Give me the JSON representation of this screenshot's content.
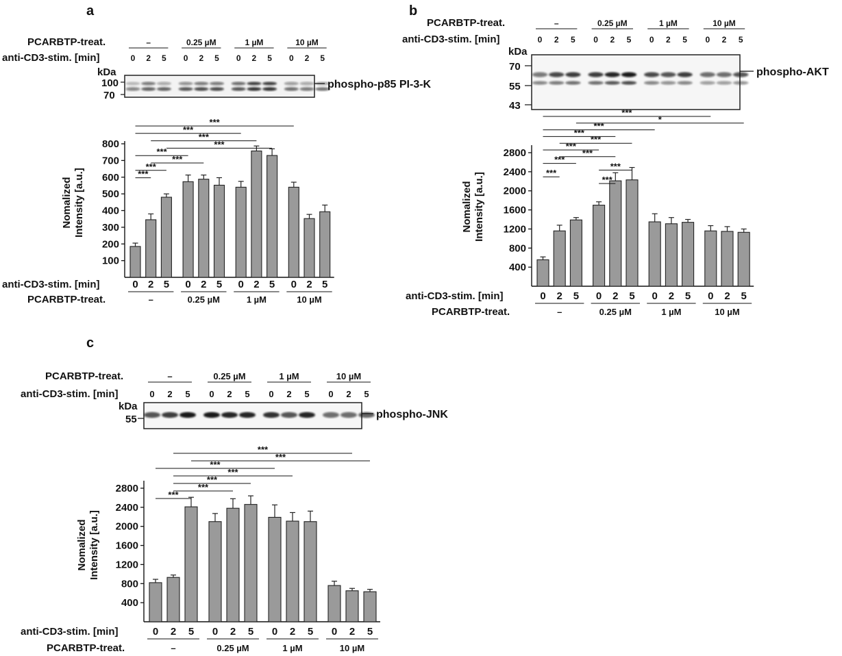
{
  "common": {
    "treat_label": "PCARBTP-treat.",
    "stim_label": "anti-CD3-stim. [min]",
    "groups": [
      "–",
      "0.25 µM",
      "1 µM",
      "10 µM"
    ],
    "lane_labels": [
      "0",
      "2",
      "5",
      "0",
      "2",
      "5",
      "0",
      "2",
      "5",
      "0",
      "2",
      "5"
    ],
    "ylabel_line1": "Nomalized",
    "ylabel_line2": "Intensity [a.u.]",
    "kda_label": "kDa",
    "bar_color": "#9a9a9a"
  },
  "panels": {
    "a": {
      "letter": "a",
      "protein": "phospho-p85 PI-3-K",
      "markers": [
        "100",
        "70"
      ]
    },
    "b": {
      "letter": "b",
      "protein": "phospho-AKT",
      "markers": [
        "70",
        "55",
        "43"
      ]
    },
    "c": {
      "letter": "c",
      "protein": "phospho-JNK",
      "markers": [
        "55"
      ]
    }
  },
  "chart_data": [
    {
      "type": "bar",
      "panel": "a",
      "categories": [
        "0",
        "2",
        "5",
        "0",
        "2",
        "5",
        "0",
        "2",
        "5",
        "0",
        "2",
        "5"
      ],
      "groups": [
        "–",
        "0.25 µM",
        "1 µM",
        "10 µM"
      ],
      "values": [
        185,
        345,
        480,
        573,
        588,
        552,
        540,
        757,
        730,
        540,
        352,
        393
      ],
      "errors": [
        20,
        35,
        20,
        40,
        25,
        45,
        35,
        30,
        40,
        30,
        25,
        40
      ],
      "ylim": [
        0,
        800
      ],
      "yticks": [
        100,
        200,
        300,
        400,
        500,
        600,
        700,
        800
      ],
      "xlabel": "anti-CD3-stim. [min]",
      "ylabel": "Nomalized Intensity [a.u.]",
      "significance": [
        {
          "from": 0,
          "to": 1,
          "label": "***"
        },
        {
          "from": 0,
          "to": 2,
          "label": "***"
        },
        {
          "from": 0,
          "to": 3,
          "label": "***"
        },
        {
          "from": 0,
          "to": 6,
          "label": "***"
        },
        {
          "from": 0,
          "to": 9,
          "label": "***"
        },
        {
          "from": 1,
          "to": 4,
          "label": "***"
        },
        {
          "from": 1,
          "to": 7,
          "label": "***"
        },
        {
          "from": 2,
          "to": 8,
          "label": "***"
        }
      ]
    },
    {
      "type": "bar",
      "panel": "b",
      "categories": [
        "0",
        "2",
        "5",
        "0",
        "2",
        "5",
        "0",
        "2",
        "5",
        "0",
        "2",
        "5"
      ],
      "groups": [
        "–",
        "0.25 µM",
        "1 µM",
        "10 µM"
      ],
      "values": [
        555,
        1160,
        1390,
        1700,
        2210,
        2230,
        1350,
        1310,
        1340,
        1160,
        1150,
        1130
      ],
      "errors": [
        60,
        120,
        50,
        70,
        170,
        260,
        170,
        130,
        60,
        110,
        100,
        70
      ],
      "ylim": [
        0,
        2900
      ],
      "yticks": [
        400,
        800,
        1200,
        1600,
        2000,
        2400,
        2800
      ],
      "xlabel": "anti-CD3-stim. [min]",
      "ylabel": "Nomalized Intensity [a.u.]",
      "significance": [
        {
          "from": 0,
          "to": 1,
          "label": "***"
        },
        {
          "from": 0,
          "to": 2,
          "label": "***"
        },
        {
          "from": 0,
          "to": 3,
          "label": "***"
        },
        {
          "from": 0,
          "to": 4,
          "label": "***"
        },
        {
          "from": 0,
          "to": 6,
          "label": "***"
        },
        {
          "from": 0,
          "to": 9,
          "label": "***"
        },
        {
          "from": 1,
          "to": 5,
          "label": "***"
        },
        {
          "from": 1,
          "to": 4,
          "label": "***"
        },
        {
          "from": 3,
          "to": 4,
          "label": "***"
        },
        {
          "from": 3,
          "to": 5,
          "label": "***"
        },
        {
          "from": 2,
          "to": 11,
          "label": "*"
        }
      ]
    },
    {
      "type": "bar",
      "panel": "c",
      "categories": [
        "0",
        "2",
        "5",
        "0",
        "2",
        "5",
        "0",
        "2",
        "5",
        "0",
        "2",
        "5"
      ],
      "groups": [
        "–",
        "0.25 µM",
        "1 µM",
        "10 µM"
      ],
      "values": [
        820,
        930,
        2410,
        2100,
        2380,
        2460,
        2190,
        2110,
        2100,
        760,
        650,
        630
      ],
      "errors": [
        70,
        50,
        200,
        170,
        200,
        180,
        260,
        180,
        220,
        90,
        50,
        50
      ],
      "ylim": [
        0,
        2900
      ],
      "yticks": [
        400,
        800,
        1200,
        1600,
        2000,
        2400,
        2800
      ],
      "xlabel": "anti-CD3-stim. [min]",
      "ylabel": "Nomalized Intensity [a.u.]",
      "significance": [
        {
          "from": 0,
          "to": 2,
          "label": "***"
        },
        {
          "from": 0,
          "to": 6,
          "label": "***"
        },
        {
          "from": 1,
          "to": 5,
          "label": "***"
        },
        {
          "from": 1,
          "to": 7,
          "label": "***"
        },
        {
          "from": 1,
          "to": 10,
          "label": "***"
        },
        {
          "from": 2,
          "to": 11,
          "label": "***"
        },
        {
          "from": 1,
          "to": 4,
          "label": "***"
        }
      ]
    }
  ]
}
